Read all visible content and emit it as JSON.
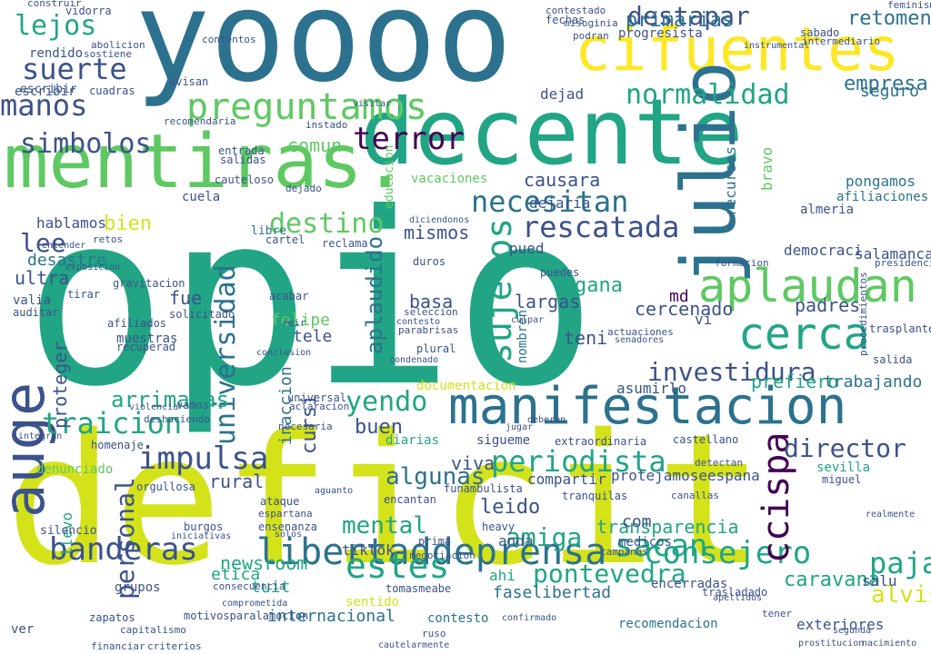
{
  "palette": {
    "yellow": "#d4e21a",
    "light_green": "#5ec962",
    "green": "#21a585",
    "teal": "#2c728e",
    "blue": "#3b528b",
    "purple": "#472d7b",
    "dark": "#440154"
  },
  "words": [
    {
      "text": "deficit",
      "color": "#d4e21a"
    },
    {
      "text": "opio",
      "color": "#21a585"
    },
    {
      "text": "yoooo",
      "color": "#2c728e"
    },
    {
      "text": "decente",
      "color": "#21a585"
    },
    {
      "text": "mentiras.",
      "color": "#5ec962"
    },
    {
      "text": "cifuentes",
      "color": "#fde725"
    },
    {
      "text": "julio",
      "color": "#2c728e"
    },
    {
      "text": "manifestacion",
      "color": "#2c728e"
    },
    {
      "text": "auge",
      "color": "#3b528b"
    },
    {
      "text": "preguntamos",
      "color": "#5ec962"
    },
    {
      "text": "aplaudan",
      "color": "#5ec962"
    },
    {
      "text": "cerca",
      "color": "#21a585"
    },
    {
      "text": "libertaddeprensa",
      "color": "#2c728e"
    },
    {
      "text": "universidad",
      "color": "#2c728e"
    },
    {
      "text": "sujetos",
      "color": "#21a585"
    },
    {
      "text": "normalidad",
      "color": "#21a585"
    },
    {
      "text": "periodista",
      "color": "#21a585"
    },
    {
      "text": "consejero",
      "color": "#21a585"
    },
    {
      "text": "banderas",
      "color": "#3b528b"
    },
    {
      "text": "traicion",
      "color": "#21a585"
    },
    {
      "text": "rescatada",
      "color": "#3b528b"
    },
    {
      "text": "necesitan",
      "color": "#2c728e"
    },
    {
      "text": "investidura",
      "color": "#3b528b"
    },
    {
      "text": "suerte",
      "color": "#3b528b"
    },
    {
      "text": "manos",
      "color": "#3b528b"
    },
    {
      "text": "simbolos",
      "color": "#3b528b"
    },
    {
      "text": "terror",
      "color": "#440154"
    },
    {
      "text": "destapar",
      "color": "#3b528b"
    },
    {
      "text": "lejos",
      "color": "#21a585"
    },
    {
      "text": "impulsa",
      "color": "#3b528b"
    },
    {
      "text": "ccispa",
      "color": "#440154"
    },
    {
      "text": "director",
      "color": "#3b528b"
    },
    {
      "text": "estes",
      "color": "#21a585"
    },
    {
      "text": "sacan",
      "color": "#21a585"
    },
    {
      "text": "mental",
      "color": "#21a585"
    },
    {
      "text": "yendo",
      "color": "#21a585"
    },
    {
      "text": "destino",
      "color": "#5ec962"
    },
    {
      "text": "aplaudido",
      "color": "#2c728e"
    },
    {
      "text": "algunas",
      "color": "#2c728e"
    },
    {
      "text": "paja",
      "color": "#21a585"
    },
    {
      "text": "personal",
      "color": "#3b528b"
    },
    {
      "text": "retomen",
      "color": "#2c728e"
    },
    {
      "text": "lee",
      "color": "#3b528b"
    },
    {
      "text": "ultra",
      "color": "#3b528b"
    },
    {
      "text": "arrimadas",
      "color": "#21a585"
    },
    {
      "text": "proteger",
      "color": "#3b528b"
    },
    {
      "text": "pontevedra",
      "color": "#21a585"
    },
    {
      "text": "alvise",
      "color": "#d4e21a"
    },
    {
      "text": "primarias",
      "color": "#2c728e"
    },
    {
      "text": "empresa",
      "color": "#2c728e"
    },
    {
      "text": "newsroom",
      "color": "#21a585"
    },
    {
      "text": "leido",
      "color": "#3b528b"
    },
    {
      "text": "amiga",
      "color": "#21a585"
    },
    {
      "text": "caravana",
      "color": "#21a585"
    },
    {
      "text": "transparencia",
      "color": "#21a585"
    },
    {
      "text": "buen",
      "color": "#3b528b"
    },
    {
      "text": "gana",
      "color": "#21a585"
    },
    {
      "text": "cercenado",
      "color": "#3b528b"
    },
    {
      "text": "causara",
      "color": "#3b528b"
    },
    {
      "text": "mismos",
      "color": "#3b528b"
    },
    {
      "text": "hablamos",
      "color": "#3b528b"
    },
    {
      "text": "bien",
      "color": "#d4e21a"
    },
    {
      "text": "basa",
      "color": "#3b528b"
    },
    {
      "text": "largas",
      "color": "#3b528b"
    },
    {
      "text": "faselibertad",
      "color": "#2c728e"
    },
    {
      "text": "internacional",
      "color": "#2c728e"
    },
    {
      "text": "exteriores",
      "color": "#3b528b"
    },
    {
      "text": "recomendacion",
      "color": "#2c728e"
    },
    {
      "text": "contesto",
      "color": "#2c728e"
    },
    {
      "text": "tiktok",
      "color": "#3b528b"
    },
    {
      "text": "etica",
      "color": "#21a585"
    },
    {
      "text": "tuit",
      "color": "#21a585"
    },
    {
      "text": "rural",
      "color": "#3b528b"
    },
    {
      "text": "fue",
      "color": "#3b528b"
    },
    {
      "text": "muestras",
      "color": "#3b528b"
    },
    {
      "text": "felipe",
      "color": "#5ec962"
    },
    {
      "text": "tele",
      "color": "#3b528b"
    },
    {
      "text": "dejaria",
      "color": "#3b528b"
    },
    {
      "text": "vacaciones",
      "color": "#5ec962"
    },
    {
      "text": "seguro",
      "color": "#2c728e"
    },
    {
      "text": "salamanca",
      "color": "#3b528b"
    },
    {
      "text": "democraci",
      "color": "#3b528b"
    },
    {
      "text": "padres",
      "color": "#3b528b"
    },
    {
      "text": "prefiero",
      "color": "#21a585"
    },
    {
      "text": "trabajando",
      "color": "#2c728e"
    },
    {
      "text": "asumirlo",
      "color": "#3b528b"
    },
    {
      "text": "viva",
      "color": "#3b528b"
    },
    {
      "text": "compartir",
      "color": "#3b528b"
    },
    {
      "text": "protejamoseespana",
      "color": "#3b528b"
    },
    {
      "text": "desastre",
      "color": "#2c728e"
    },
    {
      "text": "valia",
      "color": "#3b528b"
    },
    {
      "text": "escribir",
      "color": "#3b528b"
    },
    {
      "text": "rendido",
      "color": "#3b528b"
    },
    {
      "text": "pongamos",
      "color": "#2c728e"
    },
    {
      "text": "afiliaciones",
      "color": "#2c728e"
    },
    {
      "text": "almeria",
      "color": "#3b528b"
    },
    {
      "text": "bravo",
      "color": "#5ec962"
    },
    {
      "text": "teni",
      "color": "#3b528b"
    },
    {
      "text": "md",
      "color": "#440154"
    },
    {
      "text": "vi",
      "color": "#3b528b"
    },
    {
      "text": "com",
      "color": "#3b528b"
    },
    {
      "text": "anda",
      "color": "#3b528b"
    },
    {
      "text": "ahi",
      "color": "#21a585"
    },
    {
      "text": "sentido",
      "color": "#d4e21a"
    },
    {
      "text": "sevilla",
      "color": "#21a585"
    },
    {
      "text": "comun",
      "color": "#5ec962"
    },
    {
      "text": "recursos",
      "color": "#2c728e"
    },
    {
      "text": "fechas",
      "color": "#3b528b"
    },
    {
      "text": "vidorra",
      "color": "#3b528b"
    },
    {
      "text": "construir",
      "color": "#3b528b"
    },
    {
      "text": "sabado",
      "color": "#3b528b"
    },
    {
      "text": "progresista",
      "color": "#3b528b"
    },
    {
      "text": "escribir",
      "color": "#3b528b"
    },
    {
      "text": "libre",
      "color": "#2c728e"
    },
    {
      "text": "salu",
      "color": "#3b528b"
    },
    {
      "text": "ver",
      "color": "#3b528b"
    },
    {
      "text": "dejad",
      "color": "#3b528b"
    },
    {
      "text": "pued",
      "color": "#3b528b"
    },
    {
      "text": "grupos",
      "color": "#3b528b"
    },
    {
      "text": "nombren",
      "color": "#2c728e"
    },
    {
      "text": "diarias",
      "color": "#21a585"
    },
    {
      "text": "sigueme",
      "color": "#3b528b"
    },
    {
      "text": "cursi",
      "color": "#3b528b"
    },
    {
      "text": "inaccion",
      "color": "#2c728e"
    },
    {
      "text": "documentacion",
      "color": "#d4e21a"
    },
    {
      "text": "denunciado",
      "color": "#5ec962"
    },
    {
      "text": "llevo",
      "color": "#21a585"
    },
    {
      "text": "cuela",
      "color": "#3b528b"
    },
    {
      "text": "educacion",
      "color": "#5ec962"
    },
    {
      "text": "feminismo",
      "color": "#3b528b"
    },
    {
      "text": "miguel",
      "color": "#3b528b"
    },
    {
      "text": "salida",
      "color": "#3b528b"
    },
    {
      "text": "exposicion",
      "color": "#3b528b"
    },
    {
      "text": "campanas",
      "color": "#3b528b"
    },
    {
      "text": "medicos",
      "color": "#3b528b"
    },
    {
      "text": "heavy",
      "color": "#3b528b"
    },
    {
      "text": "trasplantes",
      "color": "#3b528b"
    },
    {
      "text": "apellidos",
      "color": "#3b528b"
    },
    {
      "text": "gravitacion",
      "color": "#3b528b"
    },
    {
      "text": "afiliados",
      "color": "#3b528b"
    },
    {
      "text": "recuperad",
      "color": "#3b528b"
    },
    {
      "text": "solicitado",
      "color": "#3b528b"
    },
    {
      "text": "auditar",
      "color": "#3b528b"
    },
    {
      "text": "tirar",
      "color": "#3b528b"
    },
    {
      "text": "homenaje",
      "color": "#3b528b"
    },
    {
      "text": "integran",
      "color": "#3b528b"
    },
    {
      "text": "silencio",
      "color": "#3b528b"
    },
    {
      "text": "burgos",
      "color": "#3b528b"
    },
    {
      "text": "iniciativas",
      "color": "#3b528b"
    },
    {
      "text": "encerradas",
      "color": "#3b528b"
    },
    {
      "text": "trasladado",
      "color": "#3b528b"
    },
    {
      "text": "motivosparalamocion",
      "color": "#3b528b"
    },
    {
      "text": "confirmado",
      "color": "#3b528b"
    },
    {
      "text": "criterios",
      "color": "#3b528b"
    },
    {
      "text": "financiar",
      "color": "#3b528b"
    },
    {
      "text": "orgullosa",
      "color": "#3b528b"
    },
    {
      "text": "puedes",
      "color": "#3b528b"
    },
    {
      "text": "aguanto",
      "color": "#3b528b"
    },
    {
      "text": "ensenanza",
      "color": "#3b528b"
    },
    {
      "text": "encantan",
      "color": "#3b528b"
    },
    {
      "text": "espartana",
      "color": "#3b528b"
    },
    {
      "text": "ataque",
      "color": "#3b528b"
    },
    {
      "text": "tranquilas",
      "color": "#3b528b"
    },
    {
      "text": "extraordinaria",
      "color": "#3b528b"
    },
    {
      "text": "castellano",
      "color": "#3b528b"
    },
    {
      "text": "detectan",
      "color": "#3b528b"
    },
    {
      "text": "canallas",
      "color": "#3b528b"
    },
    {
      "text": "funambulista",
      "color": "#3b528b"
    },
    {
      "text": "tomasmeabe",
      "color": "#3b528b"
    },
    {
      "text": "prima",
      "color": "#3b528b"
    },
    {
      "text": "negociacion",
      "color": "#3b528b"
    },
    {
      "text": "consecuencia",
      "color": "#3b528b"
    },
    {
      "text": "comprometida",
      "color": "#3b528b"
    },
    {
      "text": "zapatos",
      "color": "#3b528b"
    },
    {
      "text": "capitalismo",
      "color": "#3b528b"
    },
    {
      "text": "ruso",
      "color": "#3b528b"
    },
    {
      "text": "cautelarmente",
      "color": "#3b528b"
    },
    {
      "text": "nacimiento",
      "color": "#3b528b"
    },
    {
      "text": "prostitucion",
      "color": "#3b528b"
    },
    {
      "text": "realmente",
      "color": "#3b528b"
    },
    {
      "text": "tener",
      "color": "#3b528b"
    },
    {
      "text": "segunda",
      "color": "#3b528b"
    },
    {
      "text": "cuadras",
      "color": "#3b528b"
    },
    {
      "text": "abolicion",
      "color": "#3b528b"
    },
    {
      "text": "sostiene",
      "color": "#3b528b"
    },
    {
      "text": "contentos",
      "color": "#3b528b"
    },
    {
      "text": "avisan",
      "color": "#3b528b"
    },
    {
      "text": "recomendaria",
      "color": "#3b528b"
    },
    {
      "text": "entrada",
      "color": "#3b528b"
    },
    {
      "text": "salidas",
      "color": "#3b528b"
    },
    {
      "text": "dejado",
      "color": "#3b528b"
    },
    {
      "text": "cauteloso",
      "color": "#3b528b"
    },
    {
      "text": "diciendonos",
      "color": "#3b528b"
    },
    {
      "text": "cartel",
      "color": "#3b528b"
    },
    {
      "text": "reclama",
      "color": "#3b528b"
    },
    {
      "text": "duros",
      "color": "#3b528b"
    },
    {
      "text": "acabar",
      "color": "#3b528b"
    },
    {
      "text": "seleccion",
      "color": "#3b528b"
    },
    {
      "text": "universal",
      "color": "#3b528b"
    },
    {
      "text": "aclaracion",
      "color": "#3b528b"
    },
    {
      "text": "necesaria",
      "color": "#3b528b"
    },
    {
      "text": "plural",
      "color": "#3b528b"
    },
    {
      "text": "condenado",
      "color": "#3b528b"
    },
    {
      "text": "parabrisas",
      "color": "#3b528b"
    },
    {
      "text": "contesto",
      "color": "#3b528b"
    },
    {
      "text": "reir",
      "color": "#3b528b"
    },
    {
      "text": "conclusion",
      "color": "#3b528b"
    },
    {
      "text": "entender",
      "color": "#3b528b"
    },
    {
      "text": "retos",
      "color": "#3b528b"
    },
    {
      "text": "violencia",
      "color": "#3b528b"
    },
    {
      "text": "deshaciendo",
      "color": "#3b528b"
    },
    {
      "text": "vamos",
      "color": "#3b528b"
    },
    {
      "text": "actuaciones",
      "color": "#3b528b"
    },
    {
      "text": "senadores",
      "color": "#3b528b"
    },
    {
      "text": "culpar",
      "color": "#3b528b"
    },
    {
      "text": "formacion",
      "color": "#3b528b"
    },
    {
      "text": "presidencia",
      "color": "#3b528b"
    },
    {
      "text": "procedimientos",
      "color": "#3b528b"
    },
    {
      "text": "instado",
      "color": "#3b528b"
    },
    {
      "text": "visitar",
      "color": "#3b528b"
    },
    {
      "text": "misoginia",
      "color": "#3b528b"
    },
    {
      "text": "contestado",
      "color": "#3b528b"
    },
    {
      "text": "instrumental",
      "color": "#3b528b"
    },
    {
      "text": "podran",
      "color": "#3b528b"
    },
    {
      "text": "intermediario",
      "color": "#3b528b"
    },
    {
      "text": "solos",
      "color": "#3b528b"
    },
    {
      "text": "deberan",
      "color": "#3b528b"
    },
    {
      "text": "jugar",
      "color": "#3b528b"
    }
  ]
}
